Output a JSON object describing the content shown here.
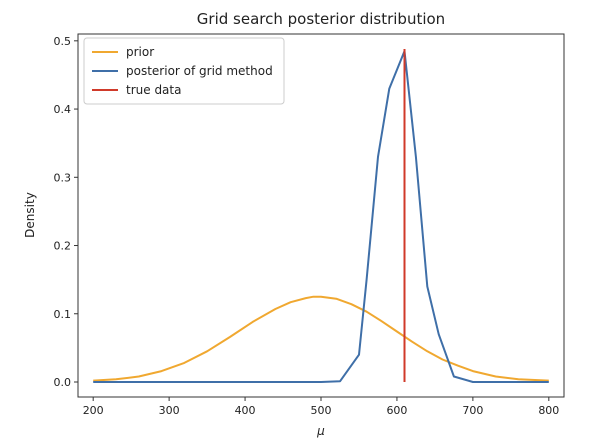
{
  "chart_data": {
    "type": "line",
    "title": "Grid search posterior distribution",
    "xlabel": "μ",
    "ylabel": "Density",
    "xlim": [
      180,
      820
    ],
    "ylim": [
      -0.022,
      0.51
    ],
    "xticks": [
      200,
      300,
      400,
      500,
      600,
      700,
      800
    ],
    "yticks": [
      0.0,
      0.1,
      0.2,
      0.3,
      0.4,
      0.5
    ],
    "ytick_labels": [
      "0.0",
      "0.1",
      "0.2",
      "0.3",
      "0.4",
      "0.5"
    ],
    "legend_position": "top-left",
    "series": [
      {
        "name": "prior",
        "color": "#f0a830",
        "x": [
          200,
          230,
          260,
          290,
          320,
          350,
          380,
          410,
          440,
          460,
          480,
          490,
          500,
          520,
          540,
          560,
          580,
          600,
          620,
          640,
          660,
          680,
          700,
          730,
          760,
          800
        ],
        "y": [
          0.002,
          0.004,
          0.008,
          0.016,
          0.028,
          0.045,
          0.066,
          0.088,
          0.107,
          0.117,
          0.123,
          0.125,
          0.125,
          0.122,
          0.114,
          0.103,
          0.089,
          0.074,
          0.059,
          0.045,
          0.033,
          0.024,
          0.016,
          0.008,
          0.004,
          0.002
        ]
      },
      {
        "name": "posterior of grid method",
        "color": "#3f6fa8",
        "x": [
          200,
          250,
          300,
          350,
          400,
          450,
          500,
          525,
          550,
          560,
          575,
          590,
          610,
          625,
          640,
          655,
          675,
          700,
          750,
          800
        ],
        "y": [
          0.0,
          0.0,
          0.0,
          0.0,
          0.0,
          0.0,
          0.0,
          0.001,
          0.04,
          0.15,
          0.33,
          0.43,
          0.485,
          0.33,
          0.14,
          0.07,
          0.008,
          0.0,
          0.0,
          0.0
        ]
      },
      {
        "name": "true data",
        "color": "#d03a2a",
        "x": [
          610,
          610
        ],
        "y": [
          0.0,
          0.488
        ]
      }
    ]
  }
}
